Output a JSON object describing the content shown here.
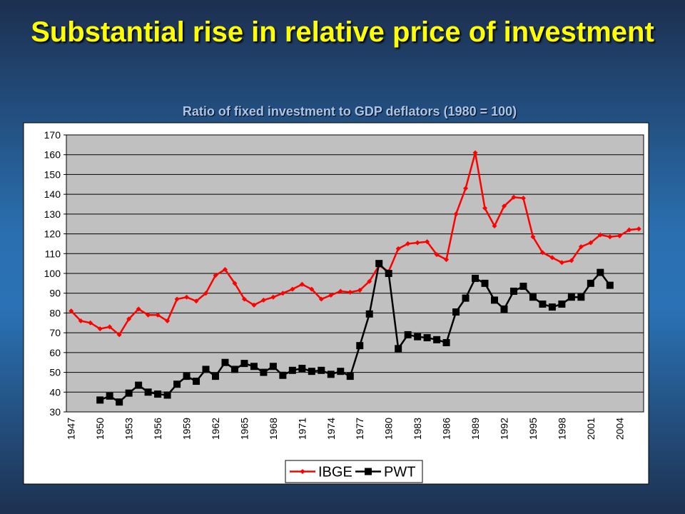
{
  "chart_data": {
    "type": "line",
    "title": "Substantial rise in relative price of investment",
    "subtitle": "Ratio of fixed investment to GDP deflators (1980 = 100)",
    "categories": [
      "1947",
      null,
      null,
      "1950",
      null,
      null,
      "1953",
      null,
      null,
      "1956",
      null,
      null,
      "1959",
      null,
      null,
      "1962",
      null,
      null,
      "1965",
      null,
      null,
      "1968",
      null,
      null,
      "1971",
      null,
      null,
      "1974",
      null,
      null,
      "1977",
      null,
      null,
      "1980",
      null,
      null,
      "1983",
      null,
      null,
      "1986",
      null,
      null,
      "1989",
      null,
      null,
      "1992",
      null,
      null,
      "1995",
      null,
      null,
      "1998",
      null,
      null,
      "2001",
      null,
      null,
      "2004",
      null,
      null
    ],
    "series": [
      {
        "name": "IBGE",
        "color": "#ff0000",
        "marker": "diamond",
        "values": [
          81,
          76,
          75,
          72,
          73,
          69,
          77,
          82,
          79,
          79,
          76,
          87,
          88,
          86,
          90,
          99,
          102,
          95,
          87,
          84,
          86.5,
          88,
          90,
          92,
          94.5,
          92,
          87,
          89,
          91,
          90.5,
          91.5,
          96,
          104,
          101,
          112.5,
          115,
          115.5,
          116,
          109.5,
          107,
          130,
          143,
          161,
          133,
          124,
          134,
          138.5,
          138,
          118.5,
          110.5,
          108,
          105.5,
          106.5,
          113.5,
          115.5,
          119.5,
          118.5,
          119,
          122,
          122.5
        ]
      },
      {
        "name": "PWT",
        "color": "#000000",
        "marker": "square",
        "values": [
          null,
          null,
          null,
          36,
          38,
          35,
          39.5,
          43.5,
          40,
          39,
          38.5,
          44,
          48,
          45.5,
          51.5,
          48,
          55,
          51.5,
          54.5,
          53,
          50,
          53,
          48.5,
          51,
          52,
          50.5,
          51,
          49,
          50.5,
          48,
          63.5,
          79.5,
          105,
          100,
          62,
          69,
          68,
          67.5,
          66.5,
          65,
          80.5,
          87.5,
          97.5,
          95,
          86.5,
          82,
          91,
          93.5,
          88,
          84.5,
          83,
          84.5,
          88,
          88,
          95,
          100.5,
          94,
          null,
          null,
          null
        ]
      }
    ],
    "ylim": [
      30,
      170
    ],
    "yticks": [
      30,
      40,
      50,
      60,
      70,
      80,
      90,
      100,
      110,
      120,
      130,
      140,
      150,
      160,
      170
    ],
    "grid": true,
    "legend": "bottom"
  }
}
